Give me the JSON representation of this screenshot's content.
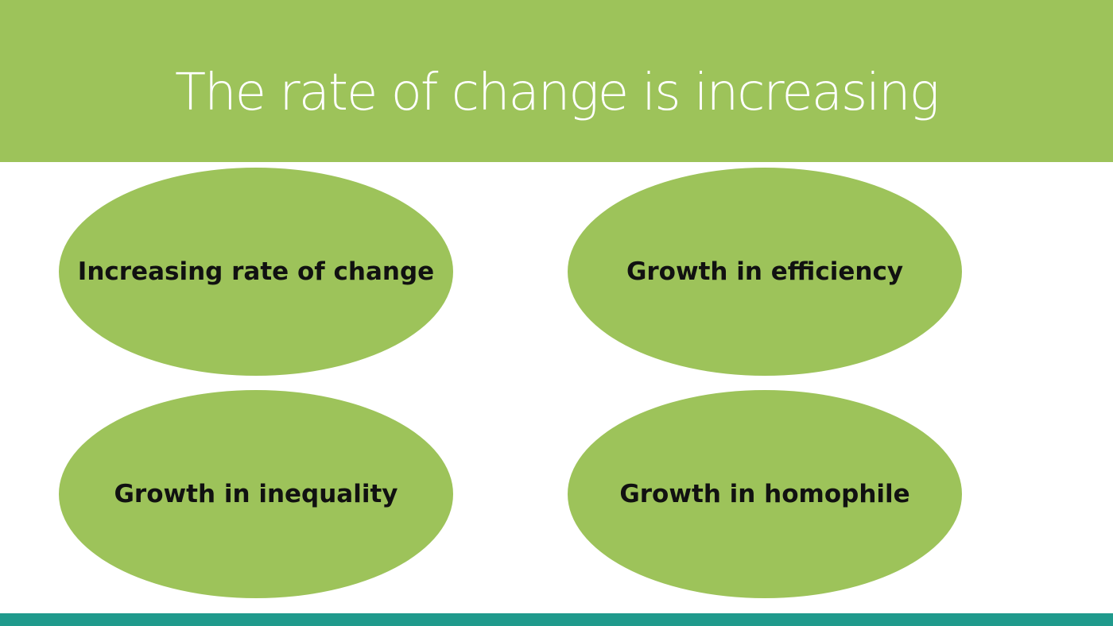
{
  "slide": {
    "title": "The rate of change is increasing",
    "nodes": [
      {
        "label": "Increasing rate of change"
      },
      {
        "label": "Growth in efficiency"
      },
      {
        "label": "Growth in inequality"
      },
      {
        "label": "Growth in homophile"
      }
    ]
  },
  "colors": {
    "header": "#9dc35a",
    "node_fill": "#9dc35a",
    "title_text": "#ffffff",
    "node_text": "#111111",
    "footer_bar": "#1f9a8c",
    "background": "#ffffff"
  }
}
